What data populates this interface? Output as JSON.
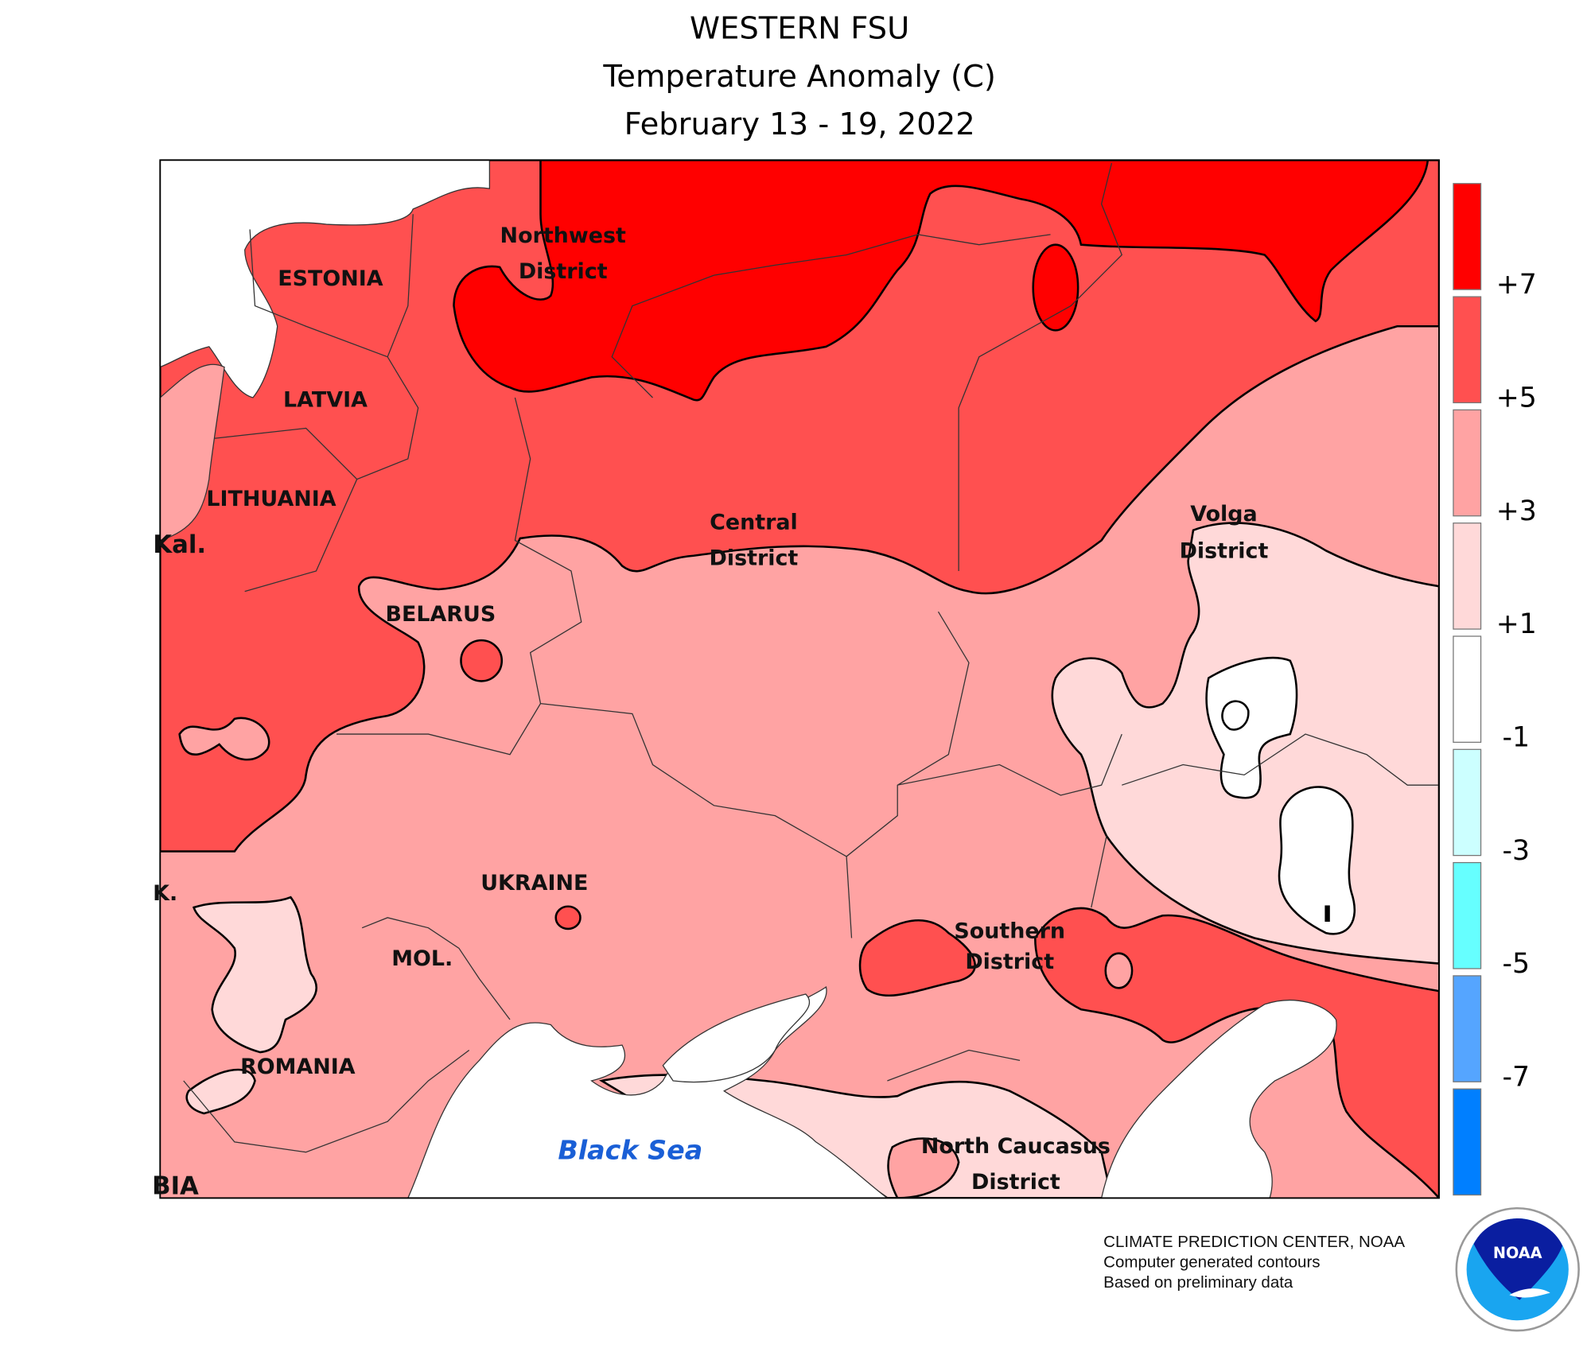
{
  "title": {
    "line1": "WESTERN FSU",
    "line2": "Temperature Anomaly (C)",
    "line3": "February 13 - 19, 2022"
  },
  "legend": {
    "bins": [
      {
        "color": "#ff0000"
      },
      {
        "color": "#ff5050"
      },
      {
        "color": "#ffa3a3"
      },
      {
        "color": "#ffd9d9"
      },
      {
        "color": "#ffffff"
      },
      {
        "color": "#ccffff"
      },
      {
        "color": "#66ffff"
      },
      {
        "color": "#55a5ff"
      },
      {
        "color": "#007fff"
      }
    ],
    "labels": [
      "+7",
      "+5",
      "+3",
      "+1",
      "-1",
      "-3",
      "-5",
      "-7"
    ]
  },
  "map": {
    "labels": {
      "northwest": [
        "Northwest",
        "District"
      ],
      "estonia": "ESTONIA",
      "latvia": "LATVIA",
      "lithuania": "LITHUANIA",
      "kal": "Kal.",
      "belarus": "BELARUS",
      "central": [
        "Central",
        "District"
      ],
      "volga": [
        "Volga",
        "District"
      ],
      "ukraine": "UKRAINE",
      "moldova": "MOL.",
      "romania": "ROMANIA",
      "southern": [
        "Southern",
        "District"
      ],
      "north_caucasus": [
        "North Caucasus",
        "District"
      ],
      "black_sea": "Black Sea",
      "edge_k": "K.",
      "edge_bia": "BIA"
    }
  },
  "credits": {
    "line1": "CLIMATE PREDICTION CENTER, NOAA",
    "line2": "Computer generated contours",
    "line3": "Based on preliminary data"
  },
  "logo": {
    "text": "NOAA"
  }
}
